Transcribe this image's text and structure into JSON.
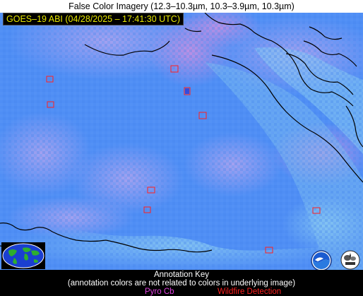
{
  "title": "False Color Imagery (12.3–10.3µm, 10.3–3.9µm, 10.3µm)",
  "timestamp": "GOES–19 ABI (04/28/2025 – 17:41:30 UTC)",
  "annotation_key": {
    "heading": "Annotation Key",
    "note": "(annotation colors are not related to colors in underlying image)",
    "pyro_label": "Pyro Cb",
    "wildfire_label": "Wildfire Detection"
  },
  "colors": {
    "water_blue": "#4f8ef5",
    "land_cyan": "#7ec0f0",
    "cloud_pink": "#c59ee6",
    "pyro_magenta": "#e040e0",
    "wildfire_red": "#ff2020",
    "stamp_yellow": "#e8e800"
  },
  "logos": [
    "globe-logo",
    "noaa-logo",
    "cimss-logo"
  ],
  "wildfire_detection_count": 10
}
